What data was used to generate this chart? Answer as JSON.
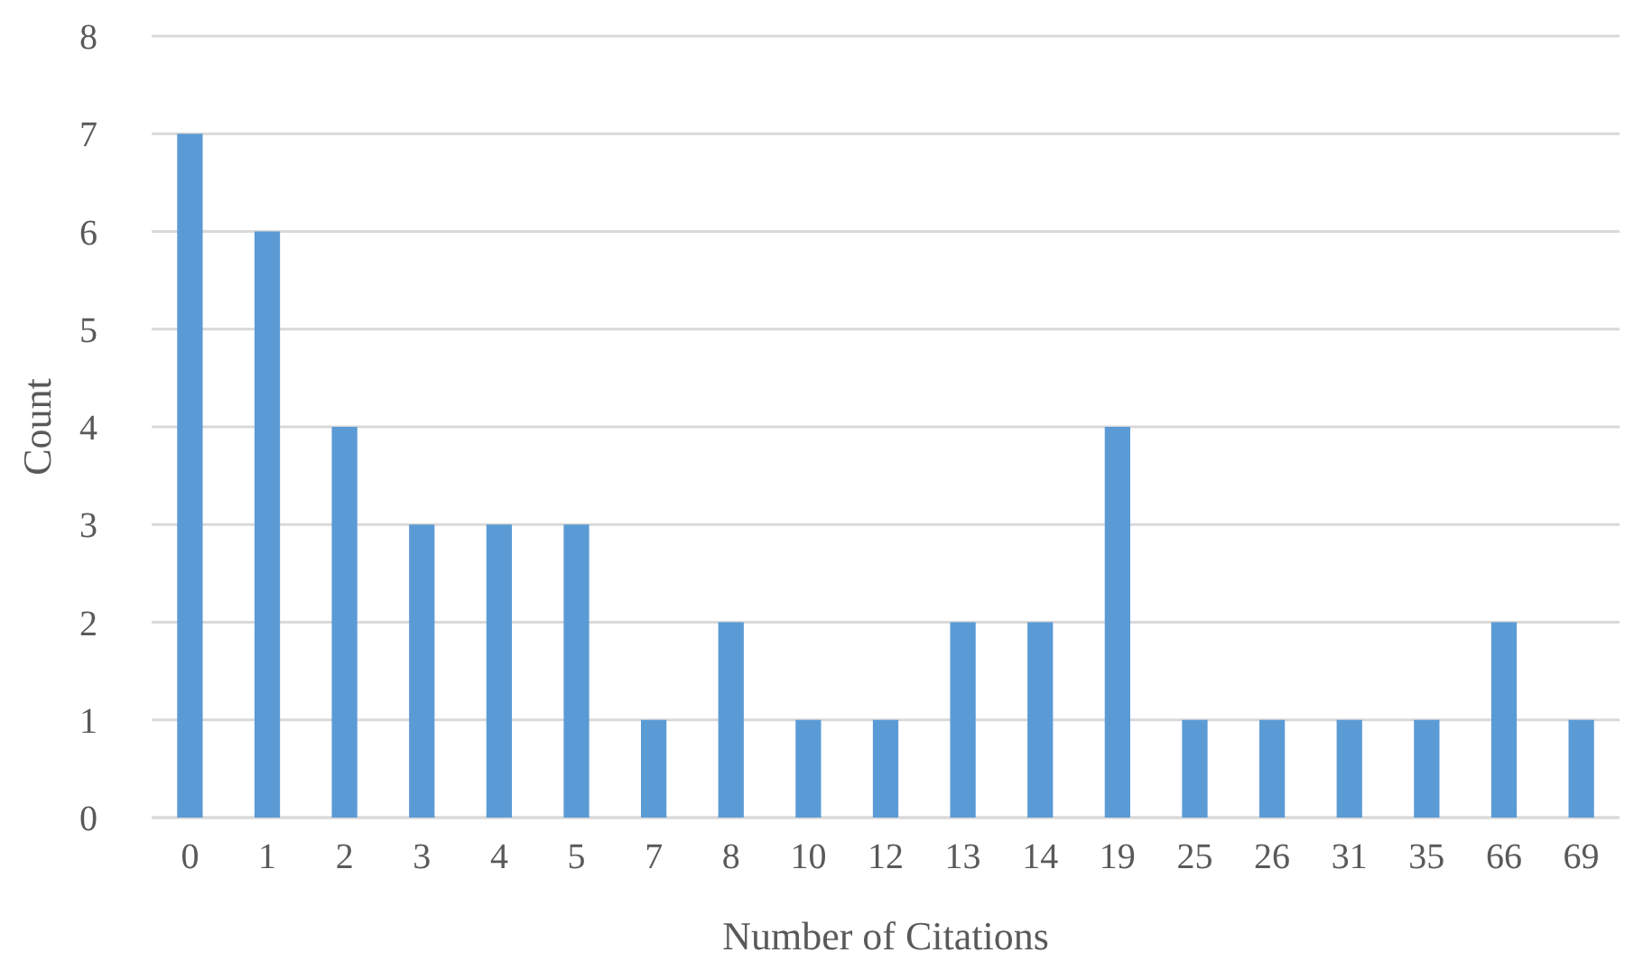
{
  "chart_data": {
    "type": "bar",
    "xlabel": "Number of Citations",
    "ylabel": "Count",
    "categories": [
      "0",
      "1",
      "2",
      "3",
      "4",
      "5",
      "7",
      "8",
      "10",
      "12",
      "13",
      "14",
      "19",
      "25",
      "26",
      "31",
      "35",
      "66",
      "69"
    ],
    "values": [
      7,
      6,
      4,
      3,
      3,
      3,
      1,
      2,
      1,
      1,
      2,
      2,
      4,
      1,
      1,
      1,
      1,
      2,
      1
    ],
    "color": "#5b9bd5",
    "ylim": [
      0,
      8
    ],
    "yticks": [
      0,
      1,
      2,
      3,
      4,
      5,
      6,
      7,
      8
    ],
    "grid": "y"
  }
}
